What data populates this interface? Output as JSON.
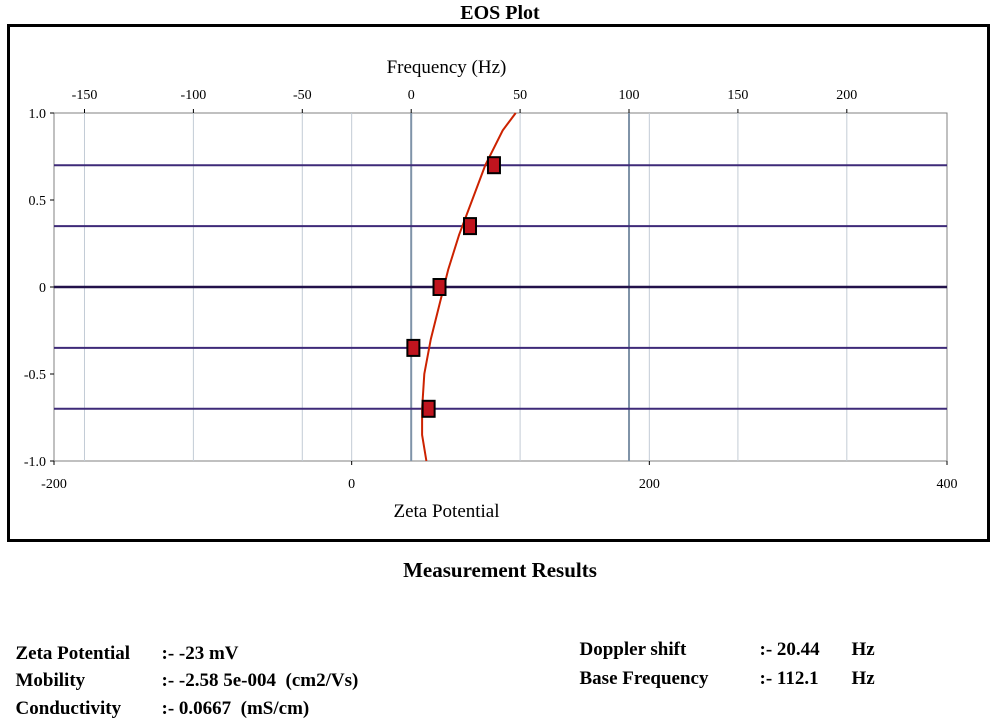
{
  "chart_data": {
    "type": "line",
    "title": "EOS Plot",
    "top_axis": {
      "label": "Frequency (Hz)",
      "ticks": [
        -150,
        -100,
        -50,
        0,
        50,
        100,
        150,
        200
      ],
      "range": [
        -164,
        246
      ]
    },
    "bottom_axis": {
      "label": "Zeta Potential",
      "ticks": [
        -200,
        0,
        200,
        400
      ],
      "range": [
        -200,
        400
      ]
    },
    "y_axis": {
      "label": "",
      "ticks": [
        1.0,
        0.5,
        0,
        -0.5,
        -1.0
      ],
      "tick_labels": [
        "1.0",
        "0.5",
        "0",
        "-0.5",
        "-1.0"
      ],
      "range": [
        -1.0,
        1.0
      ]
    },
    "grid": true,
    "horizontal_lines": [
      0.7,
      0.35,
      0,
      -0.35,
      -0.7
    ],
    "series": [
      {
        "curve_color": "#cc2200",
        "curve": [
          {
            "x": 7,
            "y": -1.0
          },
          {
            "x": 5,
            "y": -0.85
          },
          {
            "x": 5,
            "y": -0.7
          },
          {
            "x": 6,
            "y": -0.5
          },
          {
            "x": 9,
            "y": -0.3
          },
          {
            "x": 13,
            "y": -0.1
          },
          {
            "x": 17,
            "y": 0.1
          },
          {
            "x": 22,
            "y": 0.3
          },
          {
            "x": 28,
            "y": 0.5
          },
          {
            "x": 34,
            "y": 0.7
          },
          {
            "x": 42,
            "y": 0.9
          },
          {
            "x": 48,
            "y": 1.0
          }
        ],
        "marker_color": "#c0141e",
        "markers": [
          {
            "x": 8,
            "y": -0.7
          },
          {
            "x": 1,
            "y": -0.35
          },
          {
            "x": 13,
            "y": 0
          },
          {
            "x": 27,
            "y": 0.35
          },
          {
            "x": 38,
            "y": 0.7
          }
        ]
      }
    ]
  },
  "results": {
    "title": "Measurement Results",
    "left": [
      {
        "label": "Zeta Potential",
        "value": ":- -23 mV"
      },
      {
        "label": "Mobility",
        "value": ":- -2.58 5e-004  (cm2/Vs)"
      },
      {
        "label": "Conductivity",
        "value": ":- 0.0667  (mS/cm)"
      }
    ],
    "right": [
      {
        "label": "Doppler shift",
        "value": ":- 20.44",
        "unit": "Hz"
      },
      {
        "label": "Base Frequency",
        "value": ":- 112.1",
        "unit": "Hz"
      }
    ]
  }
}
